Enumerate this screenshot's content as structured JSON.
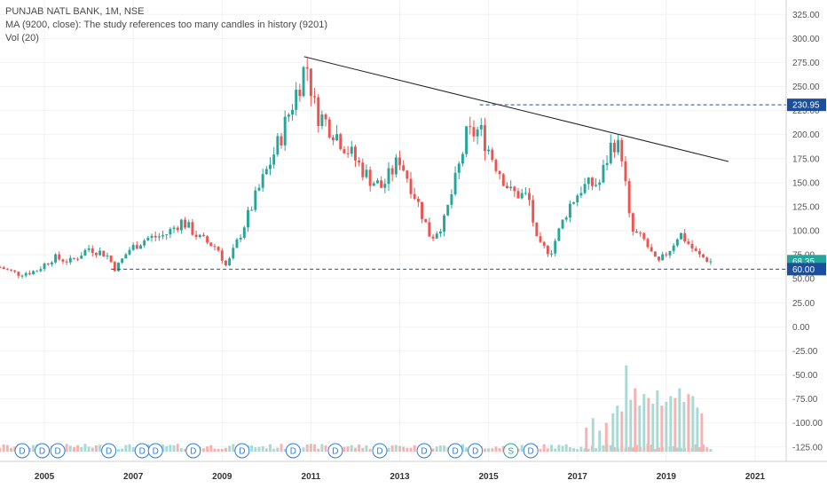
{
  "legend": {
    "title": "PUNJAB NATL BANK, 1M, NSE",
    "ma": "MA (9200, close): The study references too many candles in history (9201)",
    "vol": "Vol (20)"
  },
  "price_badges": [
    {
      "label": "230.95",
      "value": 230.95,
      "color": "#1b4f9c"
    },
    {
      "label": "68.35",
      "value": 68.35,
      "color": "#26a69a"
    },
    {
      "label": "60.00",
      "value": 60.0,
      "color": "#1b4f9c"
    }
  ],
  "chart_data": {
    "type": "candlestick",
    "y_ticks": [
      325,
      300,
      275,
      250,
      225,
      200,
      175,
      150,
      125,
      100,
      75,
      50,
      25,
      0,
      -25,
      -50,
      -75,
      -100,
      -125
    ],
    "y_tick_labels": [
      "325.00",
      "300.00",
      "275.00",
      "250.00",
      "225.00",
      "200.00",
      "175.00",
      "150.00",
      "125.00",
      "100.00",
      "75.00",
      "50.00",
      "25.00",
      "0.00",
      "-25.00",
      "-50.00",
      "-75.00",
      "-100.00",
      "-125.00"
    ],
    "x_labels": [
      "2005",
      "2007",
      "2009",
      "2011",
      "2013",
      "2015",
      "2017",
      "2019",
      "2021"
    ],
    "x_label_years": [
      2005,
      2007,
      2009,
      2011,
      2013,
      2015,
      2017,
      2019,
      2021
    ],
    "x_range": [
      2004.0,
      2021.7
    ],
    "y_range": [
      -140,
      340
    ],
    "up_color": "#26a69a",
    "down_color": "#ef5350",
    "close_path": [
      [
        2004.0,
        62
      ],
      [
        2004.4,
        55
      ],
      [
        2004.8,
        58
      ],
      [
        2005.2,
        72
      ],
      [
        2005.6,
        68
      ],
      [
        2006.0,
        82
      ],
      [
        2006.4,
        75
      ],
      [
        2006.6,
        60
      ],
      [
        2006.9,
        80
      ],
      [
        2007.3,
        92
      ],
      [
        2007.7,
        95
      ],
      [
        2008.1,
        110
      ],
      [
        2008.5,
        92
      ],
      [
        2008.9,
        82
      ],
      [
        2009.1,
        62
      ],
      [
        2009.4,
        95
      ],
      [
        2009.8,
        140
      ],
      [
        2010.3,
        195
      ],
      [
        2010.8,
        262
      ],
      [
        2010.9,
        275
      ],
      [
        2011.1,
        225
      ],
      [
        2011.5,
        205
      ],
      [
        2011.9,
        180
      ],
      [
        2012.3,
        155
      ],
      [
        2012.6,
        145
      ],
      [
        2013.0,
        175
      ],
      [
        2013.4,
        130
      ],
      [
        2013.7,
        92
      ],
      [
        2014.0,
        110
      ],
      [
        2014.3,
        160
      ],
      [
        2014.5,
        198
      ],
      [
        2014.8,
        205
      ],
      [
        2015.1,
        175
      ],
      [
        2015.5,
        140
      ],
      [
        2015.9,
        135
      ],
      [
        2016.1,
        85
      ],
      [
        2016.4,
        78
      ],
      [
        2016.8,
        125
      ],
      [
        2017.1,
        145
      ],
      [
        2017.5,
        150
      ],
      [
        2017.8,
        195
      ],
      [
        2018.0,
        180
      ],
      [
        2018.2,
        100
      ],
      [
        2018.5,
        90
      ],
      [
        2018.8,
        65
      ],
      [
        2019.1,
        82
      ],
      [
        2019.3,
        98
      ],
      [
        2019.7,
        75
      ],
      [
        2020.0,
        68
      ]
    ],
    "volume_bars": [
      [
        2017.2,
        25
      ],
      [
        2017.35,
        35
      ],
      [
        2017.5,
        22
      ],
      [
        2017.65,
        30
      ],
      [
        2017.8,
        40
      ],
      [
        2017.9,
        48
      ],
      [
        2018.0,
        42
      ],
      [
        2018.1,
        90
      ],
      [
        2018.2,
        54
      ],
      [
        2018.3,
        66
      ],
      [
        2018.4,
        48
      ],
      [
        2018.5,
        60
      ],
      [
        2018.6,
        56
      ],
      [
        2018.7,
        50
      ],
      [
        2018.8,
        64
      ],
      [
        2018.9,
        48
      ],
      [
        2019.0,
        52
      ],
      [
        2019.1,
        58
      ],
      [
        2019.2,
        56
      ],
      [
        2019.3,
        66
      ],
      [
        2019.4,
        52
      ],
      [
        2019.5,
        60
      ],
      [
        2019.6,
        58
      ],
      [
        2019.7,
        46
      ],
      [
        2019.8,
        40
      ]
    ],
    "trendline": {
      "from": [
        2010.85,
        281
      ],
      "to": [
        2020.4,
        172
      ]
    },
    "resistance_level": {
      "value": 230.95,
      "from_year": 2014.8
    },
    "support_level": {
      "value": 60.0,
      "from_year": 2006.5
    },
    "event_markers": [
      {
        "label": "D",
        "year": 2004.5,
        "color": "#2e7dd7"
      },
      {
        "label": "D",
        "year": 2004.95,
        "color": "#2e7dd7"
      },
      {
        "label": "D",
        "year": 2005.3,
        "color": "#2e7dd7"
      },
      {
        "label": "D",
        "year": 2006.45,
        "color": "#2e7dd7"
      },
      {
        "label": "D",
        "year": 2007.2,
        "color": "#2e7dd7"
      },
      {
        "label": "D",
        "year": 2007.5,
        "color": "#2e7dd7"
      },
      {
        "label": "D",
        "year": 2008.35,
        "color": "#2e7dd7"
      },
      {
        "label": "D",
        "year": 2009.45,
        "color": "#2e7dd7"
      },
      {
        "label": "D",
        "year": 2010.6,
        "color": "#2e7dd7"
      },
      {
        "label": "D",
        "year": 2011.55,
        "color": "#2e7dd7"
      },
      {
        "label": "D",
        "year": 2012.55,
        "color": "#2e7dd7"
      },
      {
        "label": "D",
        "year": 2013.55,
        "color": "#2e7dd7"
      },
      {
        "label": "D",
        "year": 2014.25,
        "color": "#2e7dd7"
      },
      {
        "label": "D",
        "year": 2014.7,
        "color": "#2e7dd7"
      },
      {
        "label": "S",
        "year": 2015.5,
        "color": "#26a69a"
      },
      {
        "label": "D",
        "year": 2015.95,
        "color": "#2e7dd7"
      }
    ]
  }
}
